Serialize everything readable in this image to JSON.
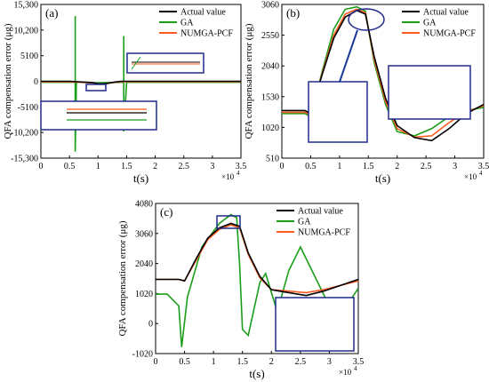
{
  "figure": {
    "colors": {
      "actual": "#000000",
      "ga": "#1a9e1a",
      "numga": "#ff5a1f",
      "frame": "#1f2a8c",
      "arrow": "#1a3a9a"
    }
  },
  "chart_data": [
    {
      "panel": "(a)",
      "type": "line",
      "ylabel": "QFA compensation error (μg)",
      "xlabel": "t(s)",
      "x_multiplier": "×10",
      "x_multiplier_exp": "4",
      "xlim": [
        0,
        3.5
      ],
      "ylim": [
        -15300,
        15300
      ],
      "xticks": [
        "0",
        "0.5",
        "1",
        "1.5",
        "2",
        "2.5",
        "3",
        "3.5"
      ],
      "xtick_values": [
        0,
        0.5,
        1,
        1.5,
        2,
        2.5,
        3,
        3.5
      ],
      "yticks": [
        "15,300",
        "10,200",
        "5100",
        "0",
        "-5100",
        "-10,200",
        "-15,300"
      ],
      "ytick_values": [
        15300,
        10200,
        5100,
        0,
        -5100,
        -10200,
        -15300
      ],
      "legend": [
        "Actual value",
        "GA",
        "NUMGA-PCF"
      ],
      "legend_position": "top-right",
      "series": [
        {
          "name": "Actual value",
          "color_key": "actual",
          "x": [
            0,
            0.5,
            0.9,
            1.0,
            1.1,
            1.2,
            1.3,
            1.4,
            1.6,
            2.0,
            2.5,
            3.0,
            3.5
          ],
          "y": [
            0,
            0,
            -250,
            -500,
            -500,
            -350,
            -150,
            0,
            0,
            0,
            0,
            0,
            0
          ]
        },
        {
          "name": "GA",
          "color_key": "ga",
          "x": [
            0,
            0.6,
            0.6,
            0.6,
            0.62,
            1.0,
            1.45,
            1.45,
            1.45,
            1.5,
            2.0,
            3.5
          ],
          "y": [
            -200,
            -200,
            13000,
            -14000,
            -200,
            -300,
            -200,
            9000,
            -10000,
            -200,
            -200,
            -200
          ]
        },
        {
          "name": "NUMGA-PCF",
          "color_key": "numga",
          "x": [
            0,
            0.5,
            0.9,
            1.0,
            1.1,
            1.2,
            1.3,
            1.4,
            1.6,
            2.0,
            2.5,
            3.0,
            3.5
          ],
          "y": [
            -100,
            -100,
            -300,
            -550,
            -550,
            -380,
            -200,
            -80,
            -80,
            -80,
            -80,
            -80,
            -80
          ]
        }
      ]
    },
    {
      "panel": "(b)",
      "type": "line",
      "ylabel": "QFA compensation error (μg)",
      "xlabel": "t(s)",
      "x_multiplier": "×10",
      "x_multiplier_exp": "4",
      "xlim": [
        0,
        3.5
      ],
      "ylim": [
        510,
        3060
      ],
      "xticks": [
        "0",
        "0.5",
        "1",
        "1.5",
        "2",
        "2.5",
        "3",
        "3.5"
      ],
      "xtick_values": [
        0,
        0.5,
        1,
        1.5,
        2,
        2.5,
        3,
        3.5
      ],
      "yticks": [
        "3060",
        "2550",
        "2040",
        "1530",
        "1020",
        "510"
      ],
      "ytick_values": [
        3060,
        2550,
        2040,
        1530,
        1020,
        510
      ],
      "legend": [
        "Actual value",
        "GA",
        "NUMGA-PCF"
      ],
      "legend_position": "top-right",
      "series": [
        {
          "name": "Actual value",
          "color_key": "actual",
          "x": [
            0,
            0.4,
            0.5,
            0.7,
            0.9,
            1.1,
            1.3,
            1.45,
            1.6,
            1.8,
            2.0,
            2.3,
            2.6,
            2.9,
            3.2,
            3.5
          ],
          "y": [
            1300,
            1300,
            1250,
            1900,
            2500,
            2850,
            2960,
            2900,
            2200,
            1500,
            1050,
            850,
            800,
            1000,
            1250,
            1400
          ]
        },
        {
          "name": "GA",
          "color_key": "ga",
          "x": [
            0,
            0.4,
            0.5,
            0.7,
            0.9,
            1.1,
            1.3,
            1.45,
            1.6,
            1.8,
            2.0,
            2.3,
            2.6,
            2.9,
            3.2,
            3.5
          ],
          "y": [
            1250,
            1250,
            1200,
            1950,
            2650,
            2980,
            3020,
            2950,
            2100,
            1400,
            950,
            880,
            1000,
            1200,
            1300,
            1350
          ]
        },
        {
          "name": "NUMGA-PCF",
          "color_key": "numga",
          "x": [
            0,
            0.4,
            0.5,
            0.7,
            0.9,
            1.1,
            1.3,
            1.45,
            1.6,
            1.8,
            2.0,
            2.3,
            2.6,
            2.9,
            3.2,
            3.5
          ],
          "y": [
            1270,
            1270,
            1230,
            1920,
            2550,
            2900,
            2980,
            2920,
            2150,
            1450,
            1000,
            860,
            880,
            1100,
            1280,
            1380
          ]
        }
      ],
      "callouts": [
        {
          "label": "zoom-peak",
          "target_x": 1.3,
          "target_y": 2950
        },
        {
          "label": "zoom-recovery",
          "target_x": 2.4,
          "target_y": 1300
        }
      ]
    },
    {
      "panel": "(c)",
      "type": "line",
      "ylabel": "QFA compensation error (μg)",
      "xlabel": "t(s)",
      "x_multiplier": "×10",
      "x_multiplier_exp": "4",
      "xlim": [
        0,
        3.5
      ],
      "ylim": [
        -1020,
        4080
      ],
      "xticks": [
        "0",
        "0.5",
        "1",
        "1.5",
        "2",
        "2.5",
        "3",
        "3.5"
      ],
      "xtick_values": [
        0,
        0.5,
        1,
        1.5,
        2,
        2.5,
        3,
        3.5
      ],
      "yticks": [
        "4080",
        "3060",
        "2040",
        "1020",
        "0",
        "-1020"
      ],
      "ytick_values": [
        4080,
        3060,
        2040,
        1020,
        0,
        -1020
      ],
      "legend": [
        "Actual value",
        "GA",
        "NUMGA-PCF"
      ],
      "legend_position": "top-right",
      "series": [
        {
          "name": "Actual value",
          "color_key": "actual",
          "x": [
            0,
            0.4,
            0.5,
            0.7,
            0.9,
            1.1,
            1.3,
            1.45,
            1.6,
            1.8,
            2.0,
            2.3,
            2.6,
            2.9,
            3.2,
            3.5
          ],
          "y": [
            1500,
            1500,
            1450,
            2200,
            2900,
            3250,
            3400,
            3300,
            2400,
            1600,
            1150,
            1050,
            950,
            1100,
            1300,
            1500
          ]
        },
        {
          "name": "GA",
          "color_key": "ga",
          "x": [
            0,
            0.2,
            0.4,
            0.45,
            0.55,
            0.8,
            1.1,
            1.3,
            1.4,
            1.45,
            1.5,
            1.6,
            1.8,
            1.9,
            2.1,
            2.3,
            2.5,
            2.7,
            3.0,
            3.2,
            3.5
          ],
          "y": [
            1000,
            1000,
            600,
            -800,
            900,
            2600,
            3400,
            3700,
            3600,
            2000,
            -200,
            -400,
            1400,
            1700,
            400,
            1800,
            2600,
            1800,
            600,
            300,
            1200
          ]
        },
        {
          "name": "NUMGA-PCF",
          "color_key": "numga",
          "x": [
            0,
            0.4,
            0.5,
            0.7,
            0.9,
            1.1,
            1.3,
            1.45,
            1.6,
            1.8,
            2.0,
            2.3,
            2.6,
            2.9,
            3.2,
            3.5
          ],
          "y": [
            1500,
            1500,
            1450,
            2150,
            2850,
            3200,
            3350,
            3250,
            2350,
            1550,
            1150,
            1100,
            1050,
            1150,
            1300,
            1450
          ]
        }
      ]
    }
  ]
}
